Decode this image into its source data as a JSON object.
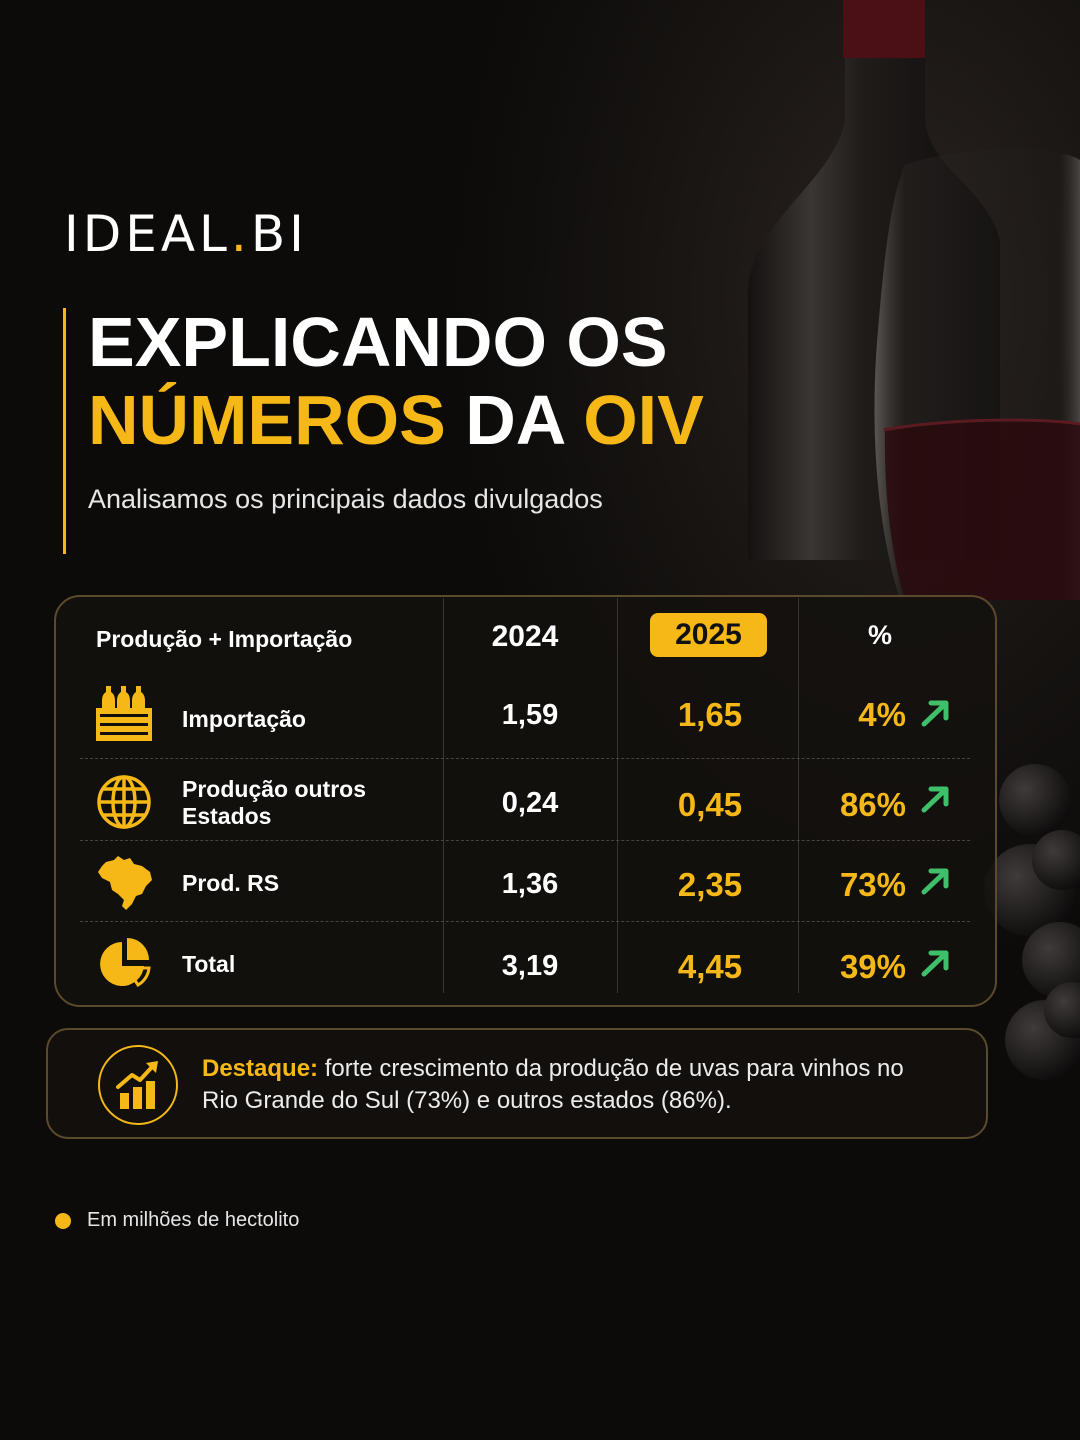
{
  "brand": {
    "logo_main": "IDEAL",
    "logo_dot": ".",
    "logo_tail": "BI",
    "accent_color": "#f5b817"
  },
  "title": {
    "line1": "EXPLICANDO OS",
    "line2_part1": "NÚMEROS",
    "line2_part2": " DA ",
    "line2_part3": "OIV",
    "subtitle": "Analisamos os principais dados divulgados"
  },
  "table": {
    "header_label": "Produção + Importação",
    "col_2024": "2024",
    "col_2025": "2025",
    "col_pct": "%",
    "rows": [
      {
        "label": "Importação",
        "v2024": "1,59",
        "v2025": "1,65",
        "pct": "4%",
        "icon": "wine-crate-icon",
        "trend": "up"
      },
      {
        "label": "Produção outros Estados",
        "v2024": "0,24",
        "v2025": "0,45",
        "pct": "86%",
        "icon": "globe-icon",
        "trend": "up"
      },
      {
        "label": "Prod. RS",
        "v2024": "1,36",
        "v2025": "2,35",
        "pct": "73%",
        "icon": "brazil-map-icon",
        "trend": "up"
      },
      {
        "label": "Total",
        "v2024": "3,19",
        "v2025": "4,45",
        "pct": "39%",
        "icon": "pie-chart-icon",
        "trend": "up"
      }
    ],
    "trend_color": "#3fbf6a"
  },
  "highlight": {
    "label": "Destaque:",
    "text": " forte crescimento da produção de uvas para vinhos no Rio Grande do Sul (73%) e outros estados (86%).",
    "icon": "growth-chart-icon"
  },
  "footnote": "Em milhões de hectolito"
}
